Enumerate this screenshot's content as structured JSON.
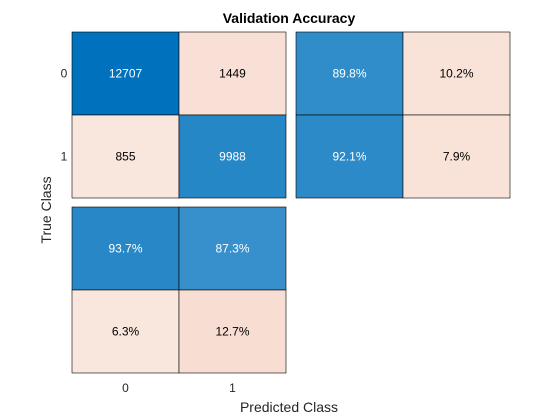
{
  "chart_data": {
    "type": "heatmap",
    "title": "Validation Accuracy",
    "xlabel": "Predicted Class",
    "ylabel": "True Class",
    "classes": [
      "0",
      "1"
    ],
    "confusion_matrix": {
      "rows": [
        "0",
        "1"
      ],
      "cols": [
        "0",
        "1"
      ],
      "values": [
        [
          12707,
          1449
        ],
        [
          855,
          9988
        ]
      ]
    },
    "row_summary": {
      "values": [
        [
          "89.8%",
          "10.2%"
        ],
        [
          "92.1%",
          "7.9%"
        ]
      ],
      "fractions": [
        [
          0.898,
          0.102
        ],
        [
          0.921,
          0.079
        ]
      ]
    },
    "column_summary": {
      "values": [
        [
          "93.7%",
          "87.3%"
        ],
        [
          "6.3%",
          "12.7%"
        ]
      ],
      "fractions": [
        [
          0.937,
          0.873
        ],
        [
          0.063,
          0.127
        ]
      ]
    },
    "colors": {
      "positive": "#0072BD",
      "negative": "#D95319",
      "text_dark": "#000000",
      "text_light": "#ffffff",
      "grid": "#000000"
    }
  }
}
